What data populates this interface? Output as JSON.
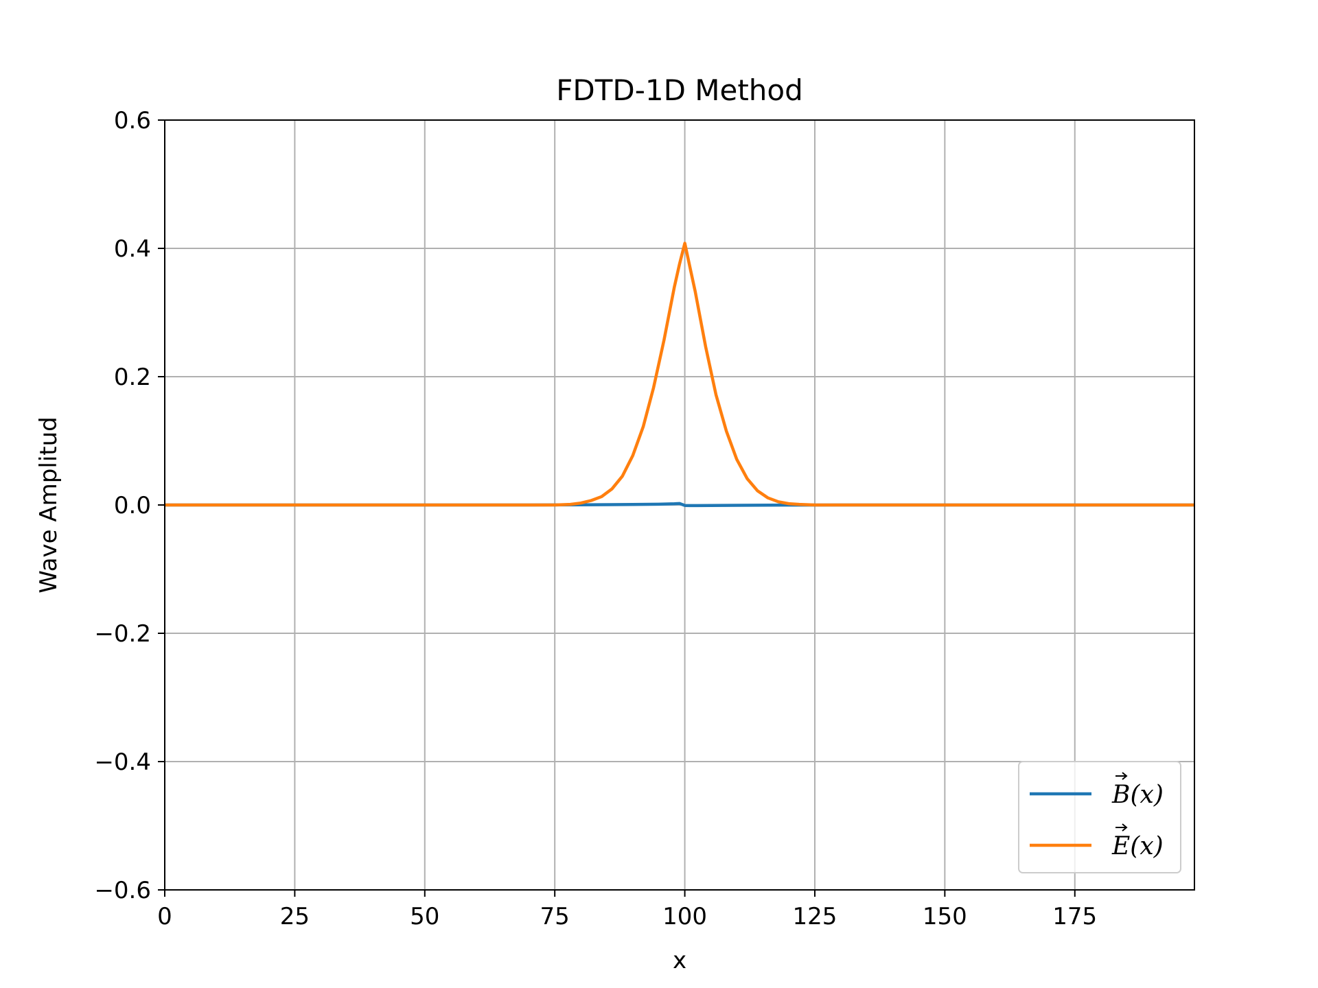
{
  "chart_data": {
    "type": "line",
    "title": "FDTD-1D Method",
    "xlabel": "x",
    "ylabel": "Wave Amplitud",
    "xlim": [
      0,
      198
    ],
    "ylim": [
      -0.6,
      0.6
    ],
    "xticks": [
      0,
      25,
      50,
      75,
      100,
      125,
      150,
      175
    ],
    "xtick_labels": [
      "0",
      "25",
      "50",
      "75",
      "100",
      "125",
      "150",
      "175"
    ],
    "yticks": [
      -0.6,
      -0.4,
      -0.2,
      0.0,
      0.2,
      0.4,
      0.6
    ],
    "ytick_labels": [
      "−0.6",
      "−0.4",
      "−0.2",
      "0.0",
      "0.2",
      "0.4",
      "0.6"
    ],
    "grid": true,
    "legend_position": "lower-right",
    "series": [
      {
        "name": "B⃗(x)",
        "legend_main": "B",
        "legend_rest": "(x)",
        "color": "#1f77b4",
        "x": [
          0,
          70,
          80,
          90,
          95,
          98,
          99,
          100,
          101,
          105,
          110,
          120,
          130,
          198
        ],
        "y": [
          0,
          0,
          0.0003,
          0.0007,
          0.0012,
          0.0018,
          0.0022,
          -0.0008,
          -0.001,
          -0.0008,
          -0.0005,
          -0.0001,
          0,
          0
        ]
      },
      {
        "name": "E⃗(x)",
        "legend_main": "E",
        "legend_rest": "(x)",
        "color": "#ff7f0e",
        "x": [
          0,
          75,
          78,
          80,
          82,
          84,
          86,
          88,
          90,
          92,
          94,
          96,
          98,
          99,
          100,
          101,
          102,
          104,
          106,
          108,
          110,
          112,
          114,
          116,
          118,
          120,
          122,
          125,
          198
        ],
        "y": [
          0,
          0,
          0.001,
          0.003,
          0.007,
          0.013,
          0.025,
          0.045,
          0.077,
          0.122,
          0.183,
          0.257,
          0.34,
          0.376,
          0.408,
          0.37,
          0.333,
          0.247,
          0.172,
          0.115,
          0.071,
          0.041,
          0.022,
          0.011,
          0.005,
          0.002,
          0.001,
          0,
          0
        ]
      }
    ]
  }
}
